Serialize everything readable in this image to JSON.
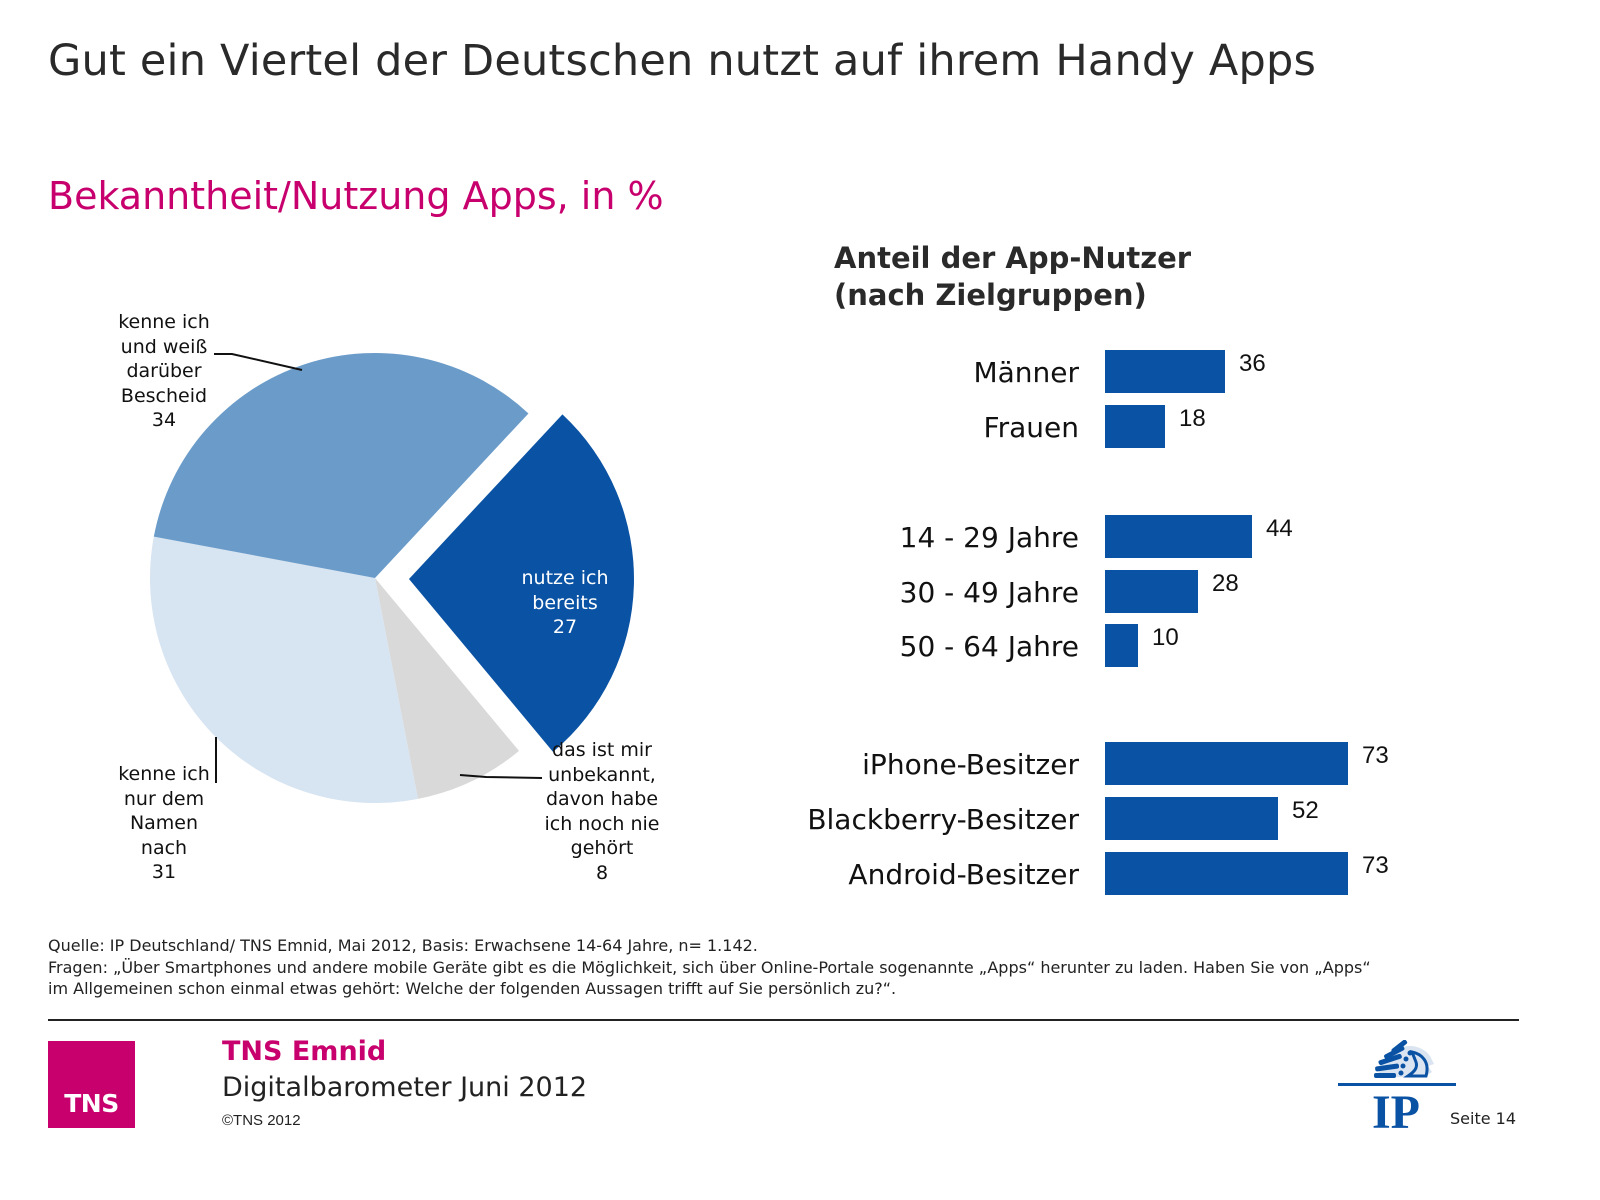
{
  "header": {
    "title": "Gut ein Viertel der Deutschen nutzt auf ihrem Handy Apps",
    "subtitle": "Bekanntheit/Nutzung Apps, in %"
  },
  "colors": {
    "accent": "#c8006e",
    "bar": "#0a52a3",
    "pie_used": "#0a52a3",
    "pie_know_well": "#6a9bc9",
    "pie_name_only": "#d7e4f1",
    "pie_unknown": "#d9d9d9"
  },
  "chart_data": [
    {
      "type": "pie",
      "title": "Bekanntheit/Nutzung Apps, in %",
      "slices": [
        {
          "label": "nutze ich bereits",
          "value": 27,
          "exploded": true
        },
        {
          "label": "das ist mir unbekannt, davon habe ich noch nie gehört",
          "value": 8,
          "exploded": false
        },
        {
          "label": "kenne ich nur dem Namen nach",
          "value": 31,
          "exploded": false
        },
        {
          "label": "kenne ich und weiß darüber Bescheid",
          "value": 34,
          "exploded": false
        }
      ],
      "slice_labels": [
        "nutze ich\nbereits\n27",
        "das ist mir\nunbekannt,\ndavon habe\nich noch nie\ngehört\n8",
        "kenne ich\nnur dem\nNamen\nnach\n31",
        "kenne ich\nund weiß\ndarüber\nBescheid\n34"
      ]
    },
    {
      "type": "bar",
      "orientation": "horizontal",
      "title": "Anteil der App-Nutzer\n(nach Zielgruppen)",
      "xlim": [
        0,
        100
      ],
      "grid": false,
      "groups": [
        {
          "categories": [
            "Männer",
            "Frauen"
          ],
          "values": [
            36,
            18
          ]
        },
        {
          "categories": [
            "14 - 29 Jahre",
            "30 - 49 Jahre",
            "50 - 64 Jahre"
          ],
          "values": [
            44,
            28,
            10
          ]
        },
        {
          "categories": [
            "iPhone-Besitzer",
            "Blackberry-Besitzer",
            "Android-Besitzer"
          ],
          "values": [
            73,
            52,
            73
          ]
        }
      ],
      "categories": [
        "Männer",
        "Frauen",
        "14 - 29 Jahre",
        "30 - 49 Jahre",
        "50 - 64 Jahre",
        "iPhone-Besitzer",
        "Blackberry-Besitzer",
        "Android-Besitzer"
      ],
      "values": [
        36,
        18,
        44,
        28,
        10,
        73,
        52,
        73
      ]
    }
  ],
  "footnote": {
    "source": "Quelle: IP Deutschland/ TNS Emnid, Mai 2012, Basis: Erwachsene 14-64 Jahre, n= 1.142.",
    "question_line1": "Fragen: „Über Smartphones und andere mobile Geräte gibt es die Möglichkeit, sich über Online-Portale sogenannte „Apps“ herunter zu laden. Haben Sie von „Apps“",
    "question_line2": "im Allgemeinen schon einmal etwas gehört: Welche der folgenden Aussagen trifft auf Sie persönlich zu?“."
  },
  "footer": {
    "logo_text": "TNS",
    "brand": "TNS Emnid",
    "report": "Digitalbarometer Juni 2012",
    "copyright": "©TNS 2012",
    "partner_logo_text": "IP",
    "page": "Seite 14"
  }
}
